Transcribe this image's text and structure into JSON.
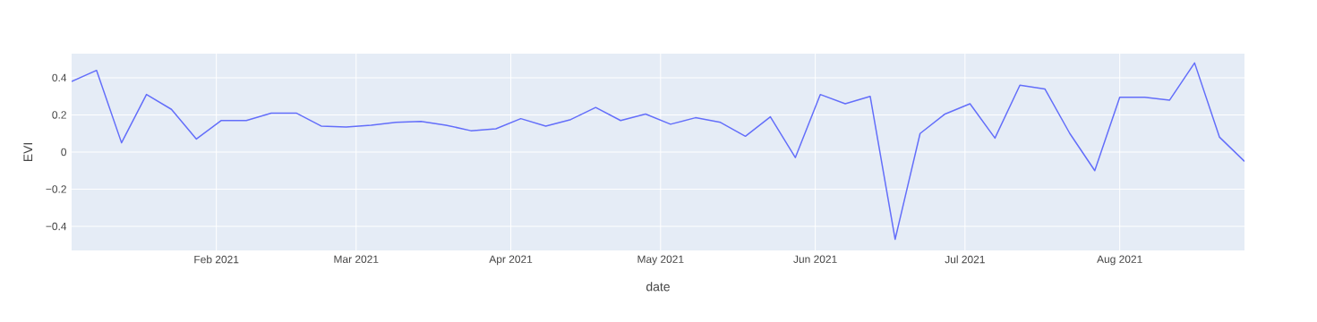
{
  "chart_data": {
    "type": "line",
    "xlabel": "date",
    "ylabel": "EVI",
    "x": [
      "2021-01-03",
      "2021-01-08",
      "2021-01-13",
      "2021-01-18",
      "2021-01-23",
      "2021-01-28",
      "2021-02-02",
      "2021-02-07",
      "2021-02-12",
      "2021-02-17",
      "2021-02-22",
      "2021-02-27",
      "2021-03-04",
      "2021-03-09",
      "2021-03-14",
      "2021-03-19",
      "2021-03-24",
      "2021-03-29",
      "2021-04-03",
      "2021-04-08",
      "2021-04-13",
      "2021-04-18",
      "2021-04-23",
      "2021-04-28",
      "2021-05-03",
      "2021-05-08",
      "2021-05-13",
      "2021-05-18",
      "2021-05-23",
      "2021-05-28",
      "2021-06-02",
      "2021-06-07",
      "2021-06-12",
      "2021-06-17",
      "2021-06-22",
      "2021-06-27",
      "2021-07-02",
      "2021-07-07",
      "2021-07-12",
      "2021-07-17",
      "2021-07-22",
      "2021-07-27",
      "2021-08-01",
      "2021-08-06",
      "2021-08-11",
      "2021-08-16",
      "2021-08-21",
      "2021-08-26"
    ],
    "series": [
      {
        "color": "#636efa",
        "values": [
          0.38,
          0.44,
          0.05,
          0.31,
          0.23,
          0.07,
          0.17,
          0.17,
          0.21,
          0.21,
          0.14,
          0.135,
          0.145,
          0.16,
          0.165,
          0.145,
          0.115,
          0.125,
          0.18,
          0.14,
          0.175,
          0.24,
          0.17,
          0.205,
          0.15,
          0.185,
          0.16,
          0.085,
          0.19,
          -0.03,
          0.31,
          0.26,
          0.3,
          -0.47,
          0.1,
          0.205,
          0.26,
          0.075,
          0.36,
          0.34,
          0.1,
          -0.1,
          0.295,
          0.295,
          0.28,
          0.48,
          0.08,
          -0.05
        ]
      }
    ],
    "xlim": [
      "2021-01-03",
      "2021-08-26"
    ],
    "ylim": [
      -0.53,
      0.53
    ],
    "xticks": [
      {
        "value": "2021-02-01",
        "label": "Feb 2021"
      },
      {
        "value": "2021-03-01",
        "label": "Mar 2021"
      },
      {
        "value": "2021-04-01",
        "label": "Apr 2021"
      },
      {
        "value": "2021-05-01",
        "label": "May 2021"
      },
      {
        "value": "2021-06-01",
        "label": "Jun 2021"
      },
      {
        "value": "2021-07-01",
        "label": "Jul 2021"
      },
      {
        "value": "2021-08-01",
        "label": "Aug 2021"
      }
    ],
    "yticks": [
      {
        "value": -0.4,
        "label": "−0.4"
      },
      {
        "value": -0.2,
        "label": "−0.2"
      },
      0,
      0.2,
      0.4
    ],
    "grid": true,
    "marker": "none",
    "line_style": "solid"
  }
}
